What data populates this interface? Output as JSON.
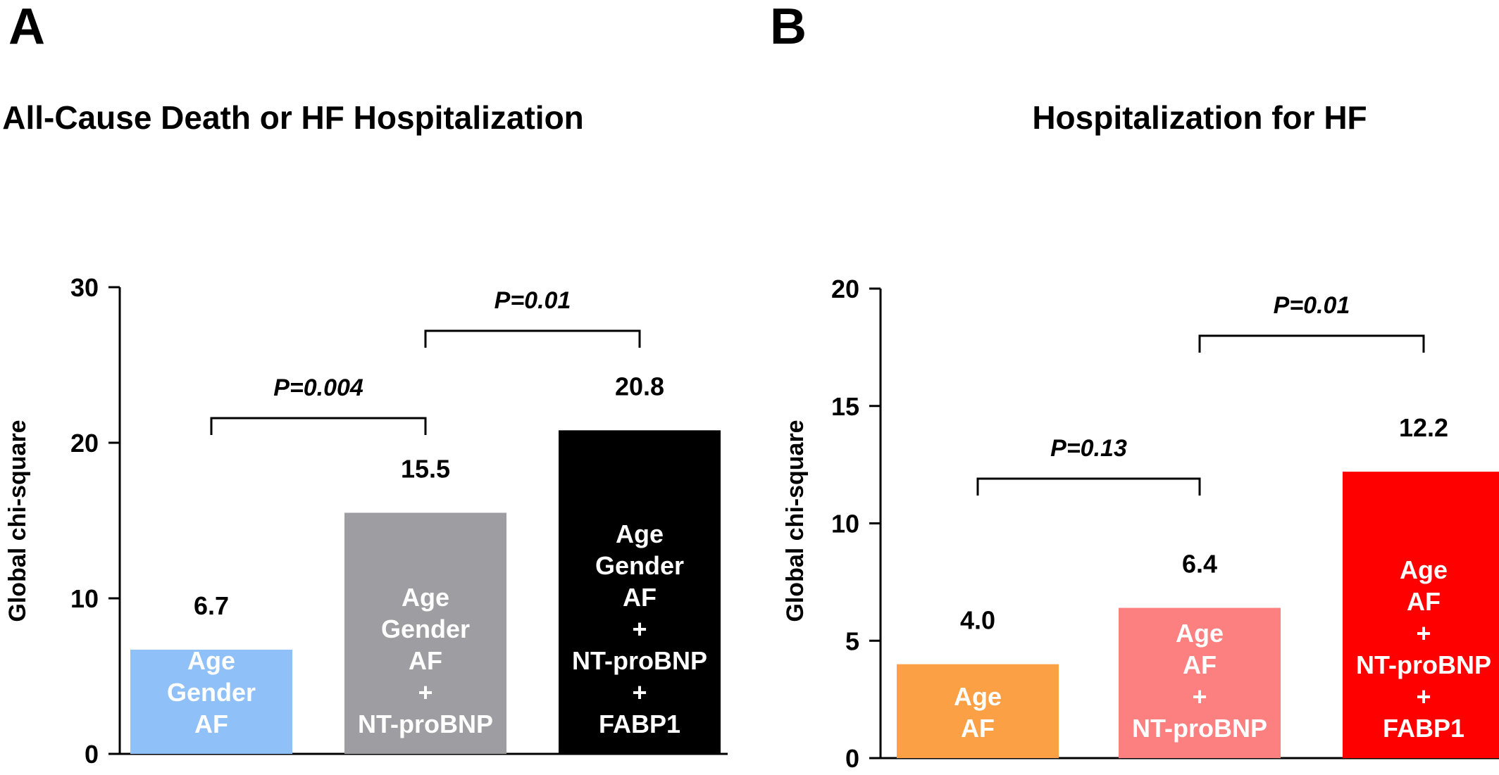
{
  "chart_data": [
    {
      "panel": "A",
      "type": "bar",
      "title": "All-Cause Death or HF Hospitalization",
      "ylabel": "Global chi-square",
      "ylim": [
        0,
        30
      ],
      "yticks": [
        0,
        10,
        20,
        30
      ],
      "categories": [
        "Age\nGender\nAF",
        "Age\nGender\nAF\n+\nNT-proBNP",
        "Age\nGender\nAF\n+\nNT-proBNP\n+\nFABP1"
      ],
      "values": [
        6.7,
        15.5,
        20.8
      ],
      "value_labels": [
        "6.7",
        "15.5",
        "20.8"
      ],
      "bar_colors": [
        "#90c0f8",
        "#9e9ea2",
        "#000000"
      ],
      "bar_labels": [
        [
          "Age",
          "Gender",
          "AF"
        ],
        [
          "Age",
          "Gender",
          "AF",
          "+",
          "NT-proBNP"
        ],
        [
          "Age",
          "Gender",
          "AF",
          "+",
          "NT-proBNP",
          "+",
          "FABP1"
        ]
      ],
      "comparisons": [
        {
          "from": 0,
          "to": 1,
          "label": "P=0.004"
        },
        {
          "from": 1,
          "to": 2,
          "label": "P=0.01"
        }
      ]
    },
    {
      "panel": "B",
      "type": "bar",
      "title": "Hospitalization for HF",
      "ylabel": "Global chi-square",
      "ylim": [
        0,
        20
      ],
      "yticks": [
        0,
        5,
        10,
        15,
        20
      ],
      "categories": [
        "Age\nAF",
        "Age\nAF\n+\nNT-proBNP",
        "Age\nAF\n+\nNT-proBNP\n+\nFABP1"
      ],
      "values": [
        4.0,
        6.4,
        12.2
      ],
      "value_labels": [
        "4.0",
        "6.4",
        "12.2"
      ],
      "bar_colors": [
        "#fba044",
        "#fd8080",
        "#ff0000"
      ],
      "bar_labels": [
        [
          "Age",
          "AF"
        ],
        [
          "Age",
          "AF",
          "+",
          "NT-proBNP"
        ],
        [
          "Age",
          "AF",
          "+",
          "NT-proBNP",
          "+",
          "FABP1"
        ]
      ],
      "comparisons": [
        {
          "from": 0,
          "to": 1,
          "label": "P=0.13"
        },
        {
          "from": 1,
          "to": 2,
          "label": "P=0.01"
        }
      ]
    }
  ]
}
